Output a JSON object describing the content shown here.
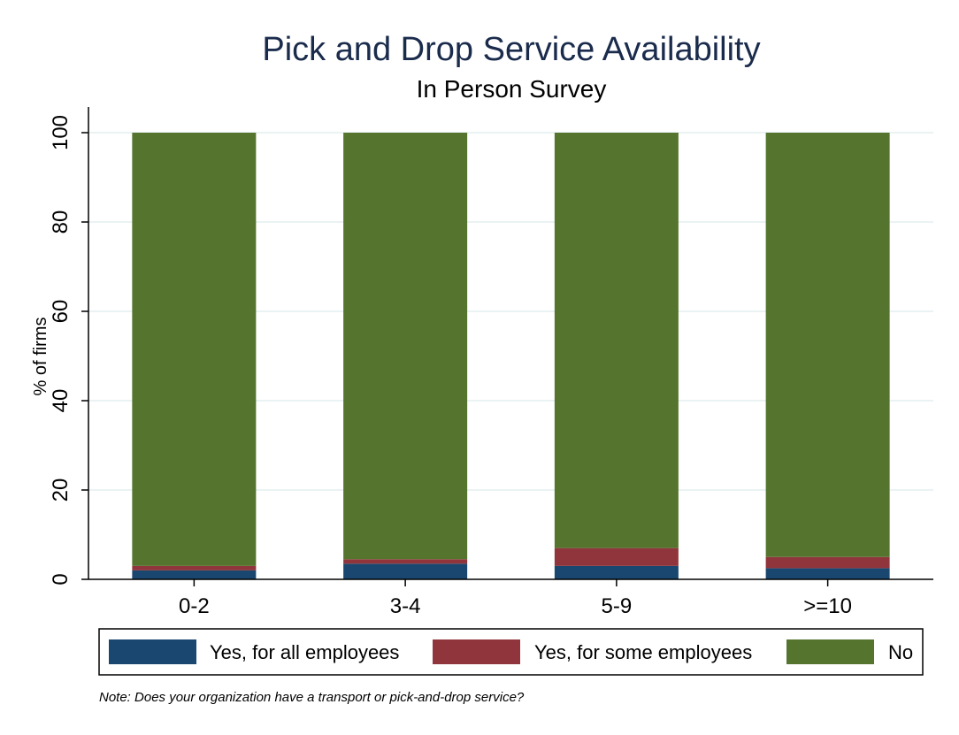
{
  "chart_data": {
    "type": "bar",
    "stacked": true,
    "title": "Pick and Drop Service Availability",
    "subtitle": "In Person Survey",
    "xlabel": "",
    "ylabel": "% of firms",
    "ylim": [
      0,
      100
    ],
    "yticks": [
      0,
      20,
      40,
      60,
      80,
      100
    ],
    "grid": true,
    "categories": [
      "0-2",
      "3-4",
      "5-9",
      ">=10"
    ],
    "series": [
      {
        "name": "Yes, for all employees",
        "color": "#1a476f",
        "values": [
          2,
          3.5,
          3,
          2.5
        ]
      },
      {
        "name": "Yes, for some employees",
        "color": "#90353b",
        "values": [
          1,
          1,
          4,
          2.5
        ]
      },
      {
        "name": "No",
        "color": "#55752f",
        "values": [
          97,
          95.5,
          93,
          95
        ]
      }
    ],
    "legend_position": "bottom",
    "note": "Note: Does your organization have a transport or pick-and-drop service?"
  }
}
